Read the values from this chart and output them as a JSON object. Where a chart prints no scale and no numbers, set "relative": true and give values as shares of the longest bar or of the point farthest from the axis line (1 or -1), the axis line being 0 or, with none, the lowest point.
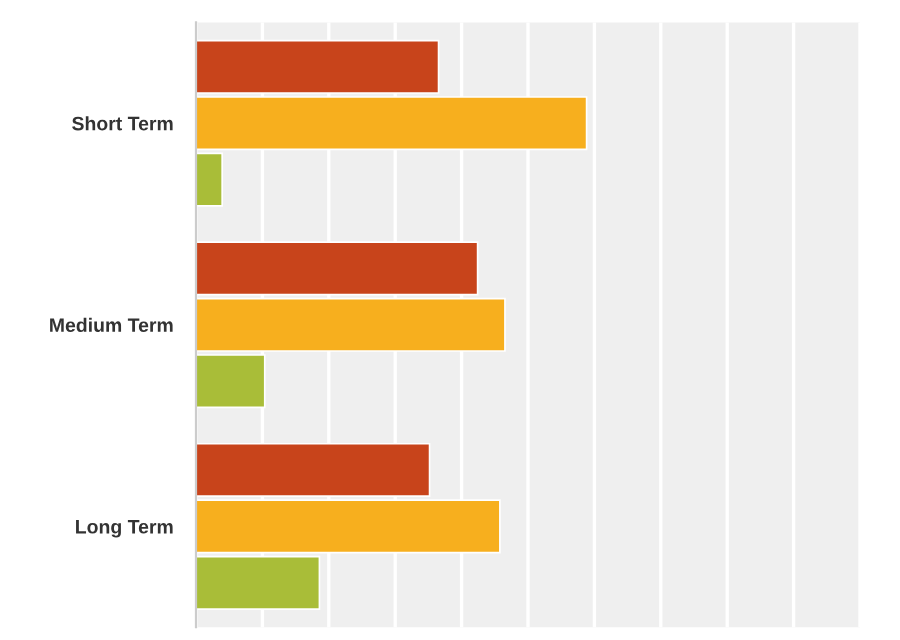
{
  "chart_data": {
    "type": "bar",
    "orientation": "horizontal",
    "relative": true,
    "grid": "x",
    "legend": false,
    "categories": [
      "Short Term",
      "Medium Term",
      "Long Term"
    ],
    "series": [
      {
        "color": "#c8441b",
        "values": [
          0.621,
          0.721,
          0.598
        ]
      },
      {
        "color": "#f7af1e",
        "values": [
          1,
          0.791,
          0.778
        ]
      },
      {
        "color": "#a9bd38",
        "values": [
          0.067,
          0.176,
          0.316
        ]
      }
    ]
  }
}
